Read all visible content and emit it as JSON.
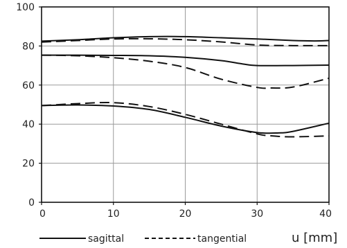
{
  "chart_data": {
    "type": "line",
    "title": "",
    "xlabel": "u [mm]",
    "ylabel": "",
    "xlim": [
      0,
      40
    ],
    "ylim": [
      0,
      100
    ],
    "xticks": [
      0,
      10,
      20,
      30,
      40
    ],
    "yticks": [
      0,
      20,
      40,
      60,
      80,
      100
    ],
    "grid": true,
    "legend": {
      "position": "bottom",
      "entries": [
        {
          "label": "sagittal",
          "style": "solid"
        },
        {
          "label": "tangential",
          "style": "dashed"
        }
      ]
    },
    "series": [
      {
        "style": "solid",
        "x": [
          0,
          5,
          10,
          15,
          20,
          25,
          30,
          35,
          38,
          40
        ],
        "y": [
          82.5,
          83.2,
          84.2,
          84.8,
          84.8,
          84.2,
          83.6,
          82.8,
          82.6,
          82.8
        ]
      },
      {
        "style": "dashed",
        "x": [
          0,
          5,
          10,
          15,
          20,
          25,
          30,
          35,
          40
        ],
        "y": [
          82,
          82.8,
          83.6,
          83.7,
          83.2,
          82.1,
          80.5,
          80.2,
          80.2
        ]
      },
      {
        "style": "solid",
        "x": [
          0,
          5,
          10,
          15,
          20,
          25,
          28,
          30,
          35,
          40
        ],
        "y": [
          75.3,
          75.3,
          75.2,
          75,
          74.2,
          72.5,
          70.8,
          70,
          70,
          70.2
        ]
      },
      {
        "style": "dashed",
        "x": [
          0,
          5,
          10,
          15,
          20,
          25,
          30,
          32,
          35,
          40
        ],
        "y": [
          75.3,
          75,
          74,
          72.2,
          69,
          63,
          58.8,
          58.5,
          59,
          63.5
        ]
      },
      {
        "style": "solid",
        "x": [
          0,
          5,
          10,
          15,
          20,
          25,
          30,
          33,
          35,
          40
        ],
        "y": [
          49.5,
          49.8,
          49.3,
          47.5,
          43.5,
          39,
          35.7,
          35.5,
          36.3,
          40.5
        ]
      },
      {
        "style": "dashed",
        "x": [
          0,
          5,
          10,
          15,
          20,
          25,
          30,
          32,
          35,
          40
        ],
        "y": [
          49.5,
          50.5,
          51,
          49,
          45,
          40,
          35,
          34,
          33.5,
          34
        ]
      }
    ]
  }
}
